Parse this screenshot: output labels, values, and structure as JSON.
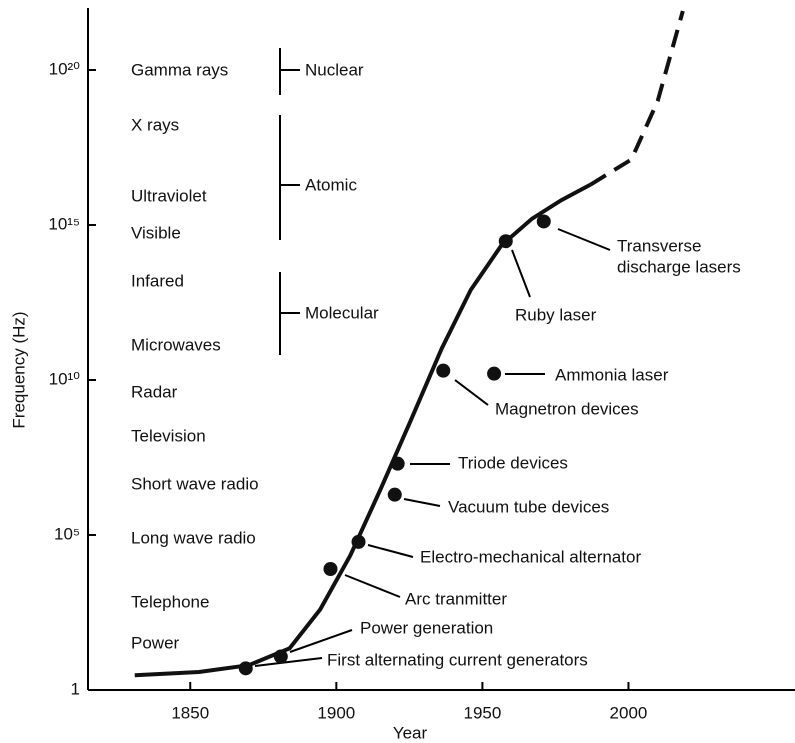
{
  "chart_data": {
    "type": "scatter",
    "x_label": "Year",
    "y_label": "Frequency (Hz)",
    "xlim": [
      1815,
      2057
    ],
    "xticks": [
      1850,
      1900,
      1950,
      2000
    ],
    "ylim": [
      1,
      1e+22
    ],
    "log_y": true,
    "yticks": [
      1,
      {
        "value": 100000.0,
        "label": "10⁵"
      },
      {
        "value": 10000000000.0,
        "label": "10¹⁰"
      },
      {
        "value": 1000000000000000.0,
        "label": "10¹⁵"
      },
      {
        "value": 1e+20,
        "label": "10²⁰"
      }
    ],
    "color": "#111",
    "points": {
      "x": [
        1869,
        1881,
        1898,
        1907.6,
        1920,
        1921,
        1936.6,
        1954,
        1958,
        1971
      ],
      "values": [
        5,
        12,
        8000,
        60000,
        2000000,
        20000000,
        20000000000,
        16000000000,
        300000000000000,
        1300000000000000
      ],
      "labels": [
        "First alternating current generators",
        "Power generation",
        "Arc tranmitter",
        "Electro-mechanical alternator",
        "Vacuum  tube devices",
        "Triode devices",
        "Magnetron devices",
        "Ammonia laser",
        "Ruby laser",
        [
          "Transverse",
          "discharge lasers"
        ]
      ]
    },
    "curve": {
      "x": [
        1831,
        1853,
        1870,
        1884,
        1894.5,
        1904.8,
        1915,
        1925.5,
        1936,
        1946,
        1956.5,
        1967,
        1977,
        1987
      ],
      "values": [
        3,
        3.8,
        6.3,
        22,
        400,
        22000,
        2800000,
        500000000,
        100000000000,
        8000000000000,
        220000000000000,
        1600000000000000,
        6300000000000000,
        20000000000000000
      ]
    },
    "curve_dashed": {
      "x": [
        1987,
        2001,
        2010,
        2018.6
      ],
      "values": [
        20000000000000000,
        130000000000000000,
        10000000000000000000,
        8e+21
      ]
    },
    "bands": [
      "Gamma rays",
      "X rays",
      "Ultraviolet",
      "Visible",
      "Infared",
      "Microwaves",
      "Radar",
      "Television",
      "Short wave radio",
      "Long wave radio",
      "Telephone",
      "Power"
    ],
    "groups": [
      "Nuclear",
      "Atomic",
      "Molecular"
    ]
  }
}
